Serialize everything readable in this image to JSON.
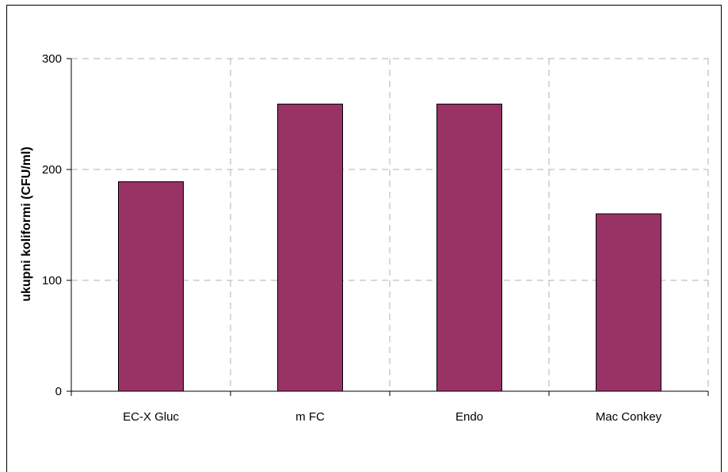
{
  "chart_data": {
    "type": "bar",
    "title": "",
    "xlabel": "",
    "ylabel": "ukupni koliformi (CFU/ml)",
    "categories": [
      "EC-X Gluc",
      "m FC",
      "Endo",
      "Mac Conkey"
    ],
    "values": [
      189,
      259,
      259,
      160
    ],
    "ylim": [
      0,
      300
    ],
    "yticks": [
      0,
      100,
      200,
      300
    ],
    "ytick_labels": [
      "0",
      "100",
      "200",
      "300"
    ],
    "grid": "dashed, horizontal and vertical",
    "legend": "none",
    "colors": {
      "bar_fill": "#993366",
      "bar_stroke": "#000000",
      "grid": "#b0b0b0",
      "axis": "#000000"
    }
  }
}
